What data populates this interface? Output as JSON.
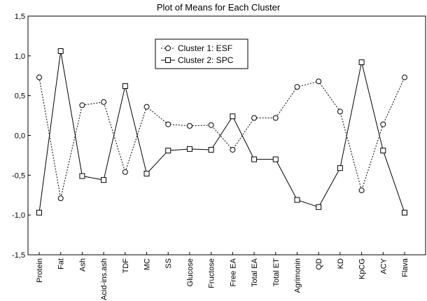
{
  "chart_data": {
    "type": "line",
    "title": "Plot of Means for Each Cluster",
    "xlabel": "",
    "ylabel": "",
    "categories": [
      "Protein",
      "Fat",
      "Ash",
      "Acid-ins.ash",
      "TDF",
      "MC",
      "SS",
      "Glucose",
      "Fructose",
      "Free EA",
      "Total EA",
      "Total ET",
      "Agrimonin",
      "QD",
      "KD",
      "KpCG",
      "ACY",
      "Flava"
    ],
    "ylim": [
      -1.5,
      1.5
    ],
    "yticks": [
      -1.5,
      -1.0,
      -0.5,
      0.0,
      0.5,
      1.0,
      1.5
    ],
    "ytick_labels": [
      "-1,5",
      "-1,0",
      "-0,5",
      "0,0",
      "0,5",
      "1,0",
      "1,5"
    ],
    "grid": false,
    "legend_position": "top-center",
    "series": [
      {
        "name": "Cluster 1: ESF",
        "marker": "circle",
        "line_style": "dotted",
        "values": [
          0.73,
          -0.79,
          0.38,
          0.42,
          -0.46,
          0.36,
          0.14,
          0.12,
          0.13,
          -0.18,
          0.22,
          0.22,
          0.61,
          0.68,
          0.3,
          -0.69,
          0.14,
          0.73
        ]
      },
      {
        "name": "Cluster 2: SPC",
        "marker": "square",
        "line_style": "solid",
        "values": [
          -0.97,
          1.06,
          -0.51,
          -0.56,
          0.62,
          -0.48,
          -0.19,
          -0.17,
          -0.18,
          0.24,
          -0.3,
          -0.3,
          -0.81,
          -0.9,
          -0.41,
          0.92,
          -0.19,
          -0.97
        ]
      }
    ]
  }
}
